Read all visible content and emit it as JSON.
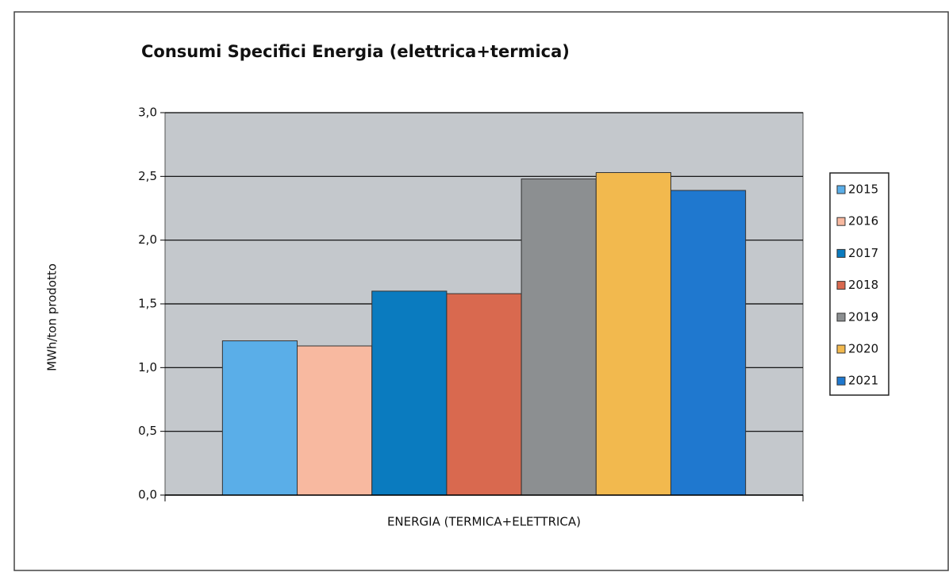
{
  "chart_data": {
    "type": "bar",
    "title": "Consumi Specifici Energia (elettrica+termica)",
    "y_label": "MWh/ton prodotto",
    "categories": [
      "ENERGIA (TERMICA+ELETTRICA)"
    ],
    "series": [
      {
        "name": "2015",
        "color": "#5aaee8",
        "values": [
          1.21
        ]
      },
      {
        "name": "2016",
        "color": "#f8b9a0",
        "values": [
          1.17
        ]
      },
      {
        "name": "2017",
        "color": "#0a7bbf",
        "values": [
          1.6
        ]
      },
      {
        "name": "2018",
        "color": "#d9694f",
        "values": [
          1.58
        ]
      },
      {
        "name": "2019",
        "color": "#8c8f91",
        "values": [
          2.48
        ]
      },
      {
        "name": "2020",
        "color": "#f2b94e",
        "values": [
          2.53
        ]
      },
      {
        "name": "2021",
        "color": "#1f78cf",
        "values": [
          2.39
        ]
      }
    ],
    "ylim": [
      0,
      3
    ],
    "yticks": [
      {
        "value": 0,
        "label": "0,0"
      },
      {
        "value": 0.5,
        "label": "0,5"
      },
      {
        "value": 1,
        "label": "1,0"
      },
      {
        "value": 1.5,
        "label": "1,5"
      },
      {
        "value": 2,
        "label": "2,0"
      },
      {
        "value": 2.5,
        "label": "2,5"
      },
      {
        "value": 3,
        "label": "3,0"
      }
    ],
    "grid": true,
    "legend": "right"
  }
}
